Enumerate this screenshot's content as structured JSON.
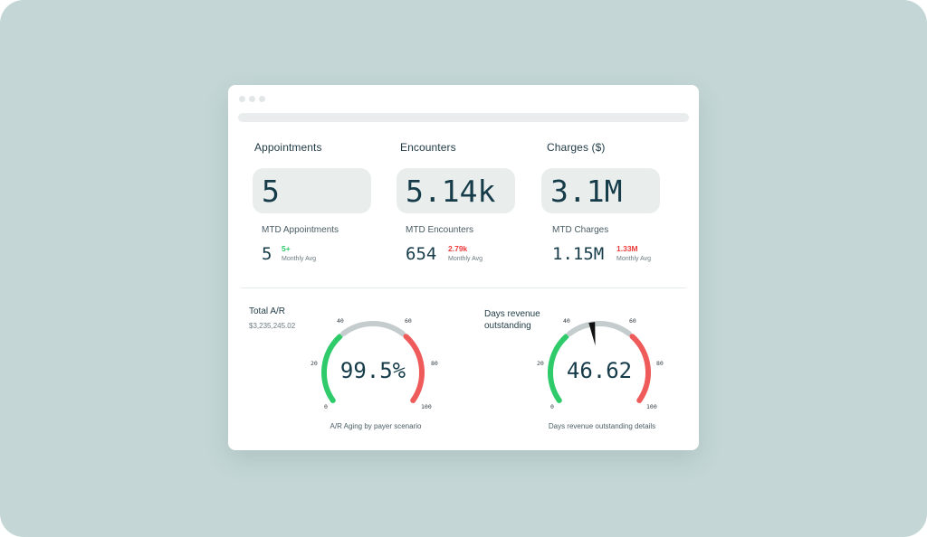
{
  "metrics": [
    {
      "title": "Appointments",
      "value": "5",
      "mtd_label": "MTD Appointments",
      "mtd_value": "5",
      "delta": "5+",
      "delta_direction": "up",
      "avg_label": "Monthly Avg"
    },
    {
      "title": "Encounters",
      "value": "5.14k",
      "mtd_label": "MTD Encounters",
      "mtd_value": "654",
      "delta": "2.79k",
      "delta_direction": "down",
      "avg_label": "Monthly Avg"
    },
    {
      "title": "Charges ($)",
      "value": "3.1M",
      "mtd_label": "MTD Charges",
      "mtd_value": "1.15M",
      "delta": "1.33M",
      "delta_direction": "down",
      "avg_label": "Monthly Avg"
    }
  ],
  "gauges": [
    {
      "title": "Total A/R",
      "subtitle": "$3,235,245.02",
      "value": "99.5%",
      "caption": "A/R Aging by payer scenario",
      "ticks": [
        "0",
        "20",
        "40",
        "60",
        "80",
        "100"
      ],
      "show_needle": false
    },
    {
      "title": "Days revenue outstanding",
      "subtitle": "",
      "value": "46.62",
      "caption": "Days revenue outstanding details",
      "ticks": [
        "0",
        "20",
        "40",
        "60",
        "80",
        "100"
      ],
      "needle_value": 46.62,
      "show_needle": true
    }
  ],
  "colors": {
    "green": "#2fcb6b",
    "gray": "#c5cccd",
    "red": "#ef5a5a",
    "needle": "#111111",
    "text_dark": "#163c4a",
    "delta_up": "#2ec86a",
    "delta_down": "#ec3b3b"
  },
  "icons": [
    "window-control-dot",
    "window-control-dot",
    "window-control-dot"
  ]
}
